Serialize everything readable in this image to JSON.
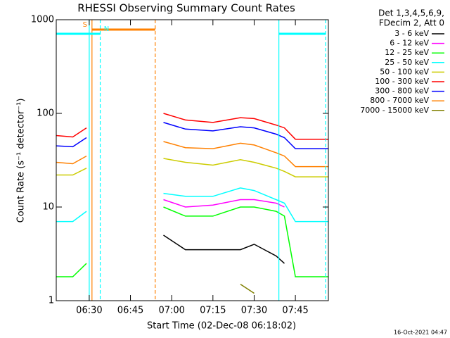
{
  "chart_data": {
    "type": "line",
    "title": "RHESSI Observing Summary Count Rates",
    "xlabel": "Start Time (02-Dec-08 06:18:02)",
    "ylabel": "Count Rate (s⁻¹ detector⁻¹)",
    "legend_header": [
      "Det 1,3,4,5,6,9,",
      "FDecim 2, Att 0"
    ],
    "footer": "16-Oct-2021 04:47",
    "log_y": true,
    "legend": "right",
    "xlim": [
      "06:18",
      "07:57"
    ],
    "xticks": [
      "06:30",
      "06:45",
      "07:00",
      "07:15",
      "07:30",
      "07:45"
    ],
    "ylim": [
      1,
      1000
    ],
    "yticks": [
      1,
      10,
      100,
      1000
    ],
    "x": [
      "06:18",
      "06:24",
      "06:29",
      "06:30",
      "06:57",
      "07:05",
      "07:15",
      "07:25",
      "07:30",
      "07:38",
      "07:41",
      "07:45",
      "07:51",
      "07:57"
    ],
    "series": [
      {
        "name": "3 - 6 keV",
        "color": "#000000",
        "values": [
          null,
          null,
          null,
          null,
          5,
          3.5,
          3.5,
          3.5,
          4,
          3,
          2.5,
          null,
          null,
          null
        ]
      },
      {
        "name": "6 - 12 keV",
        "color": "#ff00ff",
        "values": [
          null,
          null,
          null,
          null,
          12,
          10,
          10.5,
          12,
          12,
          11,
          10,
          null,
          null,
          null
        ]
      },
      {
        "name": "12 - 25 keV",
        "color": "#00ff00",
        "values": [
          1.8,
          1.8,
          2.5,
          null,
          10,
          8,
          8,
          10,
          10,
          9,
          8,
          1.8,
          1.8,
          1.8
        ]
      },
      {
        "name": "25 - 50 keV",
        "color": "#00ffff",
        "values": [
          7,
          7,
          9,
          null,
          14,
          13,
          13,
          16,
          15,
          12,
          11,
          7,
          7,
          7
        ]
      },
      {
        "name": "50 - 100 keV",
        "color": "#cccc00",
        "values": [
          22,
          22,
          26,
          null,
          33,
          30,
          28,
          32,
          30,
          26,
          24,
          21,
          21,
          21
        ]
      },
      {
        "name": "100 - 300 keV",
        "color": "#ff0000",
        "values": [
          58,
          56,
          70,
          null,
          100,
          85,
          80,
          90,
          88,
          75,
          70,
          53,
          53,
          53
        ]
      },
      {
        "name": "300 - 800 keV",
        "color": "#0000ff",
        "values": [
          45,
          44,
          55,
          null,
          80,
          68,
          65,
          72,
          70,
          60,
          55,
          42,
          42,
          42
        ]
      },
      {
        "name": "800 - 7000 keV",
        "color": "#ff8000",
        "values": [
          30,
          29,
          35,
          null,
          50,
          43,
          42,
          48,
          46,
          38,
          35,
          27,
          27,
          27
        ]
      },
      {
        "name": "7000 - 15000 keV",
        "color": "#808000",
        "values": [
          null,
          null,
          null,
          null,
          null,
          null,
          null,
          1.5,
          1.2,
          null,
          null,
          null,
          null,
          null
        ]
      }
    ],
    "markers": [
      {
        "time": "06:30",
        "color": "#00ffff",
        "dashed": false
      },
      {
        "time": "06:34",
        "color": "#00ffff",
        "dashed": true
      },
      {
        "time": "06:31",
        "color": "#ff8000",
        "dashed": false
      },
      {
        "time": "06:54",
        "color": "#ff8000",
        "dashed": true
      },
      {
        "time": "07:39",
        "color": "#00ffff",
        "dashed": false
      },
      {
        "time": "07:56",
        "color": "#00ffff",
        "dashed": true
      }
    ],
    "bars": [
      {
        "label": "S",
        "color": "#ff8000",
        "start": "06:31",
        "end": "06:54"
      },
      {
        "label": "N",
        "color": "#00ffff",
        "start": "06:18",
        "end": "06:34"
      },
      {
        "color": "#00ffff",
        "start": "07:39",
        "end": "07:56"
      }
    ]
  }
}
